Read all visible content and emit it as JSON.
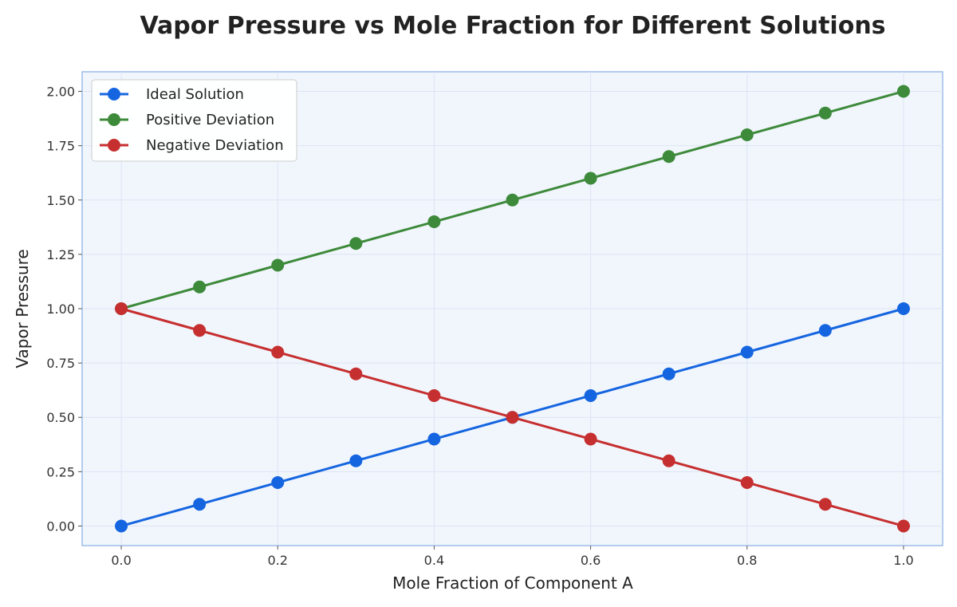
{
  "chart_data": {
    "type": "line",
    "title": "Vapor Pressure vs Mole Fraction for Different Solutions",
    "xlabel": "Mole Fraction of Component A",
    "ylabel": "Vapor Pressure",
    "xlim": [
      -0.05,
      1.05
    ],
    "ylim": [
      -0.09,
      2.09
    ],
    "x_ticks": [
      0.0,
      0.2,
      0.4,
      0.6,
      0.8,
      1.0
    ],
    "x_tick_labels": [
      "0.0",
      "0.2",
      "0.4",
      "0.6",
      "0.8",
      "1.0"
    ],
    "y_ticks": [
      0.0,
      0.25,
      0.5,
      0.75,
      1.0,
      1.25,
      1.5,
      1.75,
      2.0
    ],
    "y_tick_labels": [
      "0.00",
      "0.25",
      "0.50",
      "0.75",
      "1.00",
      "1.25",
      "1.50",
      "1.75",
      "2.00"
    ],
    "grid": true,
    "legend_position": "top-left",
    "x": [
      0.0,
      0.1,
      0.2,
      0.3,
      0.4,
      0.5,
      0.6,
      0.7,
      0.8,
      0.9,
      1.0
    ],
    "series": [
      {
        "name": "Ideal Solution",
        "color": "#1565e0",
        "values": [
          0.0,
          0.1,
          0.2,
          0.3,
          0.4,
          0.5,
          0.6,
          0.7,
          0.8,
          0.9,
          1.0
        ]
      },
      {
        "name": "Positive Deviation",
        "color": "#3d8a3a",
        "values": [
          1.0,
          1.1,
          1.2,
          1.3,
          1.4,
          1.5,
          1.6,
          1.7,
          1.8,
          1.9,
          2.0
        ]
      },
      {
        "name": "Negative Deviation",
        "color": "#c62f2f",
        "values": [
          1.0,
          0.9,
          0.8,
          0.7,
          0.6,
          0.5,
          0.4,
          0.3,
          0.2,
          0.1,
          0.0
        ]
      }
    ],
    "colors": {
      "plot_background": "#f1f6fd",
      "plot_border": "#9bbbe8",
      "grid": "#dde3f3"
    }
  }
}
